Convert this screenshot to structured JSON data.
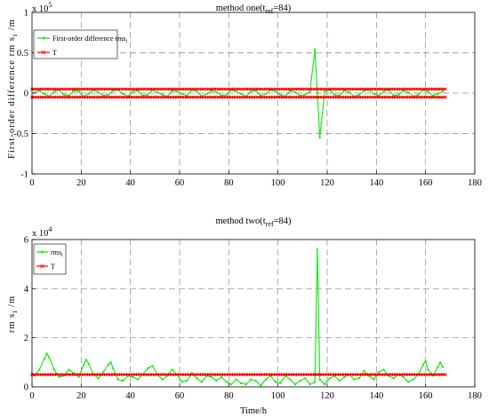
{
  "chart_data": [
    {
      "type": "line",
      "title": "method one(t_ref=84)",
      "title_parts": {
        "pre": "method one(t",
        "sub": "ref",
        "post": "=84)"
      },
      "ylabel": "First-order difference rms_i /m",
      "ylabel_parts": {
        "pre": "First-order difference rm s",
        "sub": "i",
        "post": " /m"
      },
      "xlabel": "",
      "xlim": [
        0,
        180
      ],
      "ylim": [
        -1,
        1
      ],
      "y_exponent_label": "x 10",
      "y_exponent_power": "5",
      "xticks": [
        0,
        20,
        40,
        60,
        80,
        100,
        120,
        140,
        160,
        180
      ],
      "yticks": [
        -1,
        -0.5,
        0,
        0.5,
        1
      ],
      "ytick_labels": [
        "-1",
        "-0.5",
        "0",
        "0.5",
        "1"
      ],
      "grid": true,
      "legend_position": "top-left",
      "series": [
        {
          "name": "First-order difference rms_i",
          "name_parts": {
            "pre": "First-order difference rms",
            "sub": "i",
            "post": ""
          },
          "color": "#00ee00",
          "marker": "dot",
          "x": [
            1,
            3,
            5,
            7,
            9,
            11,
            13,
            15,
            17,
            19,
            21,
            23,
            25,
            27,
            29,
            31,
            33,
            35,
            37,
            39,
            41,
            43,
            45,
            47,
            49,
            51,
            53,
            55,
            57,
            59,
            61,
            63,
            65,
            67,
            69,
            71,
            73,
            75,
            77,
            79,
            81,
            83,
            85,
            87,
            89,
            91,
            93,
            95,
            97,
            99,
            101,
            103,
            105,
            107,
            109,
            111,
            113,
            115,
            116,
            117,
            119,
            121,
            123,
            125,
            127,
            129,
            131,
            133,
            135,
            137,
            139,
            141,
            143,
            145,
            147,
            149,
            151,
            153,
            155,
            157,
            159,
            161,
            163,
            165,
            167
          ],
          "y": [
            0.01,
            0.03,
            -0.01,
            -0.04,
            0.02,
            0.04,
            -0.02,
            -0.03,
            0.03,
            0.02,
            -0.04,
            -0.01,
            0.04,
            0.01,
            -0.03,
            -0.02,
            0.03,
            0.04,
            -0.01,
            -0.04,
            0.02,
            0.03,
            -0.03,
            -0.02,
            0.04,
            0.01,
            -0.02,
            -0.04,
            0.03,
            0.02,
            -0.01,
            -0.03,
            0.04,
            0.02,
            -0.04,
            -0.01,
            0.03,
            0.01,
            -0.03,
            -0.02,
            0.04,
            0.02,
            -0.01,
            -0.04,
            0.02,
            0.03,
            -0.03,
            -0.01,
            0.04,
            0.02,
            -0.02,
            -0.04,
            0.03,
            0.01,
            -0.03,
            -0.02,
            0.02,
            0.54,
            0.01,
            -0.55,
            0.02,
            0.04,
            -0.02,
            -0.03,
            0.03,
            0.01,
            -0.04,
            -0.02,
            0.03,
            0.04,
            -0.01,
            -0.03,
            0.02,
            0.04,
            -0.03,
            -0.02,
            0.03,
            0.01,
            -0.04,
            -0.02,
            0.04,
            0.02,
            -0.03,
            -0.01,
            0.02
          ]
        },
        {
          "name": "T",
          "color": "#ff0000",
          "marker": "x",
          "x_range": [
            0,
            168
          ],
          "y_const": [
            0.05,
            -0.05
          ]
        }
      ]
    },
    {
      "type": "line",
      "title": "method two(t_ref=84)",
      "title_parts": {
        "pre": "method two(t",
        "sub": "ref",
        "post": "=84)"
      },
      "ylabel": "rms_i /m",
      "ylabel_parts": {
        "pre": "rm s",
        "sub": "i",
        "post": " /m"
      },
      "xlabel": "Time/h",
      "xlim": [
        0,
        180
      ],
      "ylim": [
        0,
        6
      ],
      "y_exponent_label": "x 10",
      "y_exponent_power": "4",
      "xticks": [
        0,
        20,
        40,
        60,
        80,
        100,
        120,
        140,
        160,
        180
      ],
      "yticks": [
        0,
        2,
        4,
        6
      ],
      "ytick_labels": [
        "0",
        "2",
        "4",
        "6"
      ],
      "grid": true,
      "legend_position": "top-left",
      "series": [
        {
          "name": "rms_i",
          "name_parts": {
            "pre": "rms",
            "sub": "i",
            "post": ""
          },
          "color": "#00ee00",
          "marker": "dot",
          "x": [
            1,
            3,
            5,
            6,
            7,
            9,
            11,
            13,
            15,
            17,
            19,
            21,
            22,
            23,
            25,
            27,
            29,
            31,
            32,
            33,
            35,
            37,
            39,
            41,
            43,
            45,
            47,
            49,
            51,
            53,
            55,
            57,
            59,
            61,
            63,
            65,
            67,
            69,
            71,
            73,
            75,
            77,
            79,
            81,
            83,
            85,
            87,
            89,
            91,
            93,
            95,
            97,
            99,
            101,
            103,
            105,
            107,
            109,
            111,
            113,
            115,
            116,
            117,
            119,
            121,
            123,
            125,
            127,
            129,
            131,
            133,
            135,
            137,
            139,
            141,
            143,
            145,
            147,
            149,
            151,
            153,
            155,
            157,
            159,
            160,
            161,
            163,
            165,
            166,
            167
          ],
          "y": [
            0.45,
            0.7,
            1.15,
            1.35,
            1.2,
            0.7,
            0.4,
            0.45,
            0.7,
            0.55,
            0.4,
            0.9,
            1.1,
            0.95,
            0.5,
            0.35,
            0.6,
            0.9,
            1.0,
            0.75,
            0.3,
            0.25,
            0.45,
            0.4,
            0.3,
            0.5,
            0.75,
            0.85,
            0.5,
            0.3,
            0.45,
            0.7,
            0.5,
            0.2,
            0.25,
            0.55,
            0.35,
            0.2,
            0.45,
            0.4,
            0.25,
            0.4,
            0.2,
            0.1,
            0.3,
            0.15,
            0.1,
            0.3,
            0.25,
            0.05,
            0.3,
            0.45,
            0.2,
            0.15,
            0.45,
            0.3,
            0.1,
            0.25,
            0.35,
            0.1,
            0.2,
            5.6,
            0.3,
            0.1,
            0.35,
            0.45,
            0.25,
            0.4,
            0.5,
            0.3,
            0.35,
            0.65,
            0.45,
            0.3,
            0.6,
            0.7,
            0.45,
            0.35,
            0.5,
            0.4,
            0.2,
            0.3,
            0.5,
            0.9,
            1.05,
            0.7,
            0.45,
            0.8,
            1.0,
            0.8
          ]
        },
        {
          "name": "T",
          "color": "#ff0000",
          "marker": "x",
          "x_range": [
            0,
            168
          ],
          "y_const": [
            0.5
          ]
        }
      ]
    }
  ]
}
